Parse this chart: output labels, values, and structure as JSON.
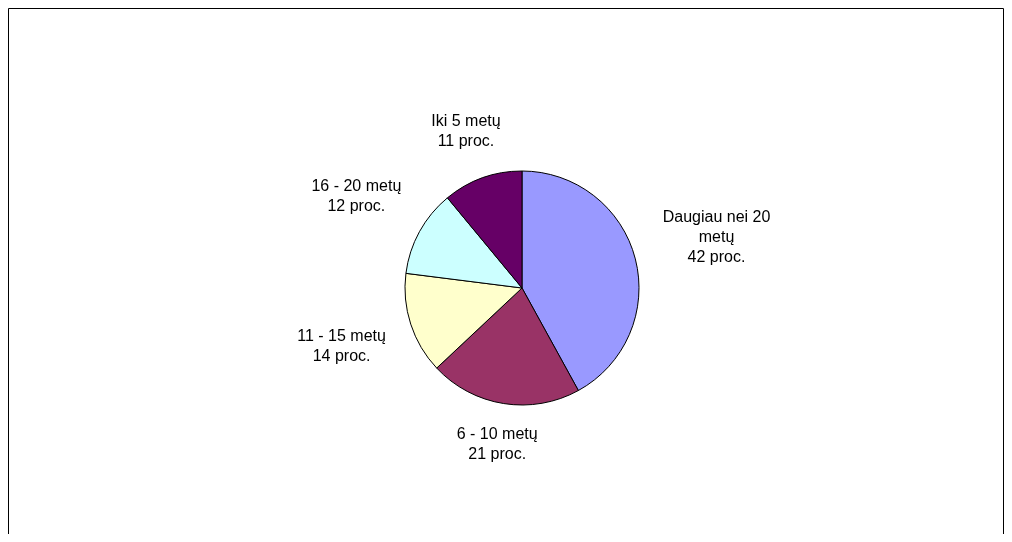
{
  "chart_data": {
    "type": "pie",
    "categories": [
      "Daugiau nei 20 metų",
      "6 - 10 metų",
      "11 - 15 metų",
      "16 - 20 metų",
      "Iki 5 metų"
    ],
    "values": [
      42,
      21,
      14,
      12,
      11
    ],
    "value_labels": [
      "42 proc.",
      "21 proc.",
      "14 proc.",
      "12 proc.",
      "11 proc."
    ],
    "colors": [
      "#9999ff",
      "#993366",
      "#ffffcc",
      "#ccffff",
      "#660066"
    ],
    "legend": false
  }
}
